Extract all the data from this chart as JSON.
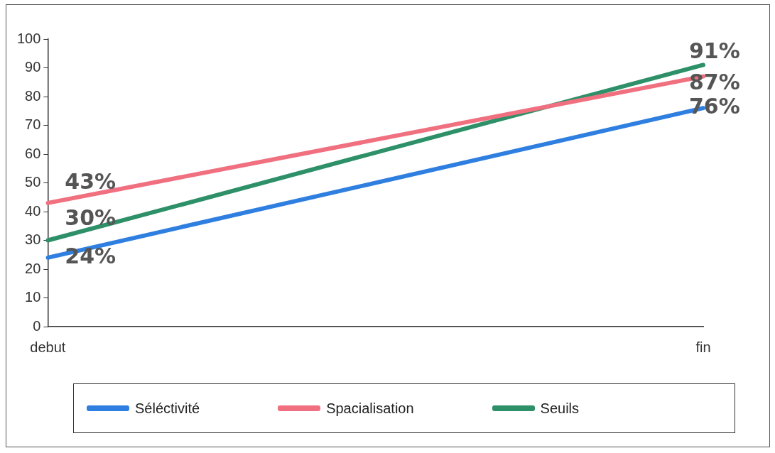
{
  "chart_data": {
    "type": "line",
    "categories": [
      "debut",
      "fin"
    ],
    "series": [
      {
        "name": "Séléctivité",
        "color": "#2f7fe0",
        "values": [
          24,
          76
        ],
        "value_labels": [
          "24%",
          "76%"
        ]
      },
      {
        "name": "Spacialisation",
        "color": "#f07080",
        "values": [
          43,
          87
        ],
        "value_labels": [
          "43%",
          "87%"
        ]
      },
      {
        "name": "Seuils",
        "color": "#2e9068",
        "values": [
          30,
          91
        ],
        "value_labels": [
          "30%",
          "91%"
        ]
      }
    ],
    "ylim": [
      0,
      100
    ],
    "yticks": [
      0,
      10,
      20,
      30,
      40,
      50,
      60,
      70,
      80,
      90,
      100
    ],
    "grid": false,
    "legend": "bottom",
    "marker": "none",
    "line_style": "solid"
  }
}
